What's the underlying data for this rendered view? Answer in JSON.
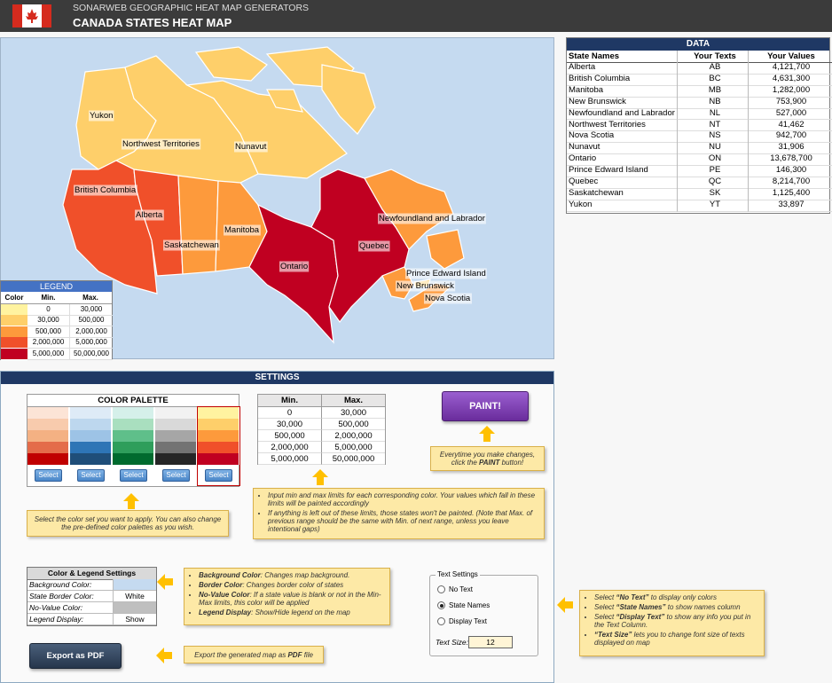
{
  "header": {
    "subtitle": "SONARWEB GEOGRAPHIC HEAT MAP GENERATORS",
    "title": "CANADA STATES HEAT MAP"
  },
  "map": {
    "background": "#c5daf0",
    "regions": [
      {
        "label": "Yukon",
        "color": "#fecf6a"
      },
      {
        "label": "Northwest Territories",
        "color": "#fecf6a"
      },
      {
        "label": "Nunavut",
        "color": "#fecf6a"
      },
      {
        "label": "British Columbia",
        "color": "#f0502a"
      },
      {
        "label": "Alberta",
        "color": "#f0502a"
      },
      {
        "label": "Saskatchewan",
        "color": "#fd9a3c"
      },
      {
        "label": "Manitoba",
        "color": "#fd9a3c"
      },
      {
        "label": "Ontario",
        "color": "#c00021"
      },
      {
        "label": "Quebec",
        "color": "#c00021"
      },
      {
        "label": "Newfoundland and Labrador",
        "color": "#fd9a3c"
      },
      {
        "label": "Prince Edward Island",
        "color": "#fecf6a"
      },
      {
        "label": "New Brunswick",
        "color": "#fd9a3c"
      },
      {
        "label": "Nova Scotia",
        "color": "#fd9a3c"
      }
    ]
  },
  "legend": {
    "title": "LEGEND",
    "columns": [
      "Color",
      "Min.",
      "Max."
    ],
    "rows": [
      {
        "color": "#fff3a0",
        "min": "0",
        "max": "30,000"
      },
      {
        "color": "#fecf6a",
        "min": "30,000",
        "max": "500,000"
      },
      {
        "color": "#fd9a3c",
        "min": "500,000",
        "max": "2,000,000"
      },
      {
        "color": "#f0502a",
        "min": "2,000,000",
        "max": "5,000,000"
      },
      {
        "color": "#c00021",
        "min": "5,000,000",
        "max": "50,000,000"
      }
    ]
  },
  "data_table": {
    "title": "DATA",
    "columns": [
      "State Names",
      "Your Texts",
      "Your Values"
    ],
    "rows": [
      [
        "Alberta",
        "AB",
        "4,121,700"
      ],
      [
        "British Columbia",
        "BC",
        "4,631,300"
      ],
      [
        "Manitoba",
        "MB",
        "1,282,000"
      ],
      [
        "New Brunswick",
        "NB",
        "753,900"
      ],
      [
        "Newfoundland and Labrador",
        "NL",
        "527,000"
      ],
      [
        "Northwest Territories",
        "NT",
        "41,462"
      ],
      [
        "Nova Scotia",
        "NS",
        "942,700"
      ],
      [
        "Nunavut",
        "NU",
        "31,906"
      ],
      [
        "Ontario",
        "ON",
        "13,678,700"
      ],
      [
        "Prince Edward Island",
        "PE",
        "146,300"
      ],
      [
        "Quebec",
        "QC",
        "8,214,700"
      ],
      [
        "Saskatchewan",
        "SK",
        "1,125,400"
      ],
      [
        "Yukon",
        "YT",
        "33,897"
      ]
    ]
  },
  "settings": {
    "title": "SETTINGS",
    "palette": {
      "title": "COLOR PALETTE",
      "columns": [
        {
          "colors": [
            "#fce4d6",
            "#f8cbad",
            "#f4b183",
            "#e46c4a",
            "#c00000"
          ],
          "button": "Select",
          "selected": false
        },
        {
          "colors": [
            "#deebf7",
            "#bdd7ee",
            "#9dc3e6",
            "#2e75b6",
            "#1f4e79"
          ],
          "button": "Select",
          "selected": false
        },
        {
          "colors": [
            "#d5f0ea",
            "#a9dfbf",
            "#5fbf8a",
            "#2e9e5b",
            "#006b2e"
          ],
          "button": "Select",
          "selected": false
        },
        {
          "colors": [
            "#f2f2f2",
            "#d9d9d9",
            "#a6a6a6",
            "#737373",
            "#262626"
          ],
          "button": "Select",
          "selected": false
        },
        {
          "colors": [
            "#fff3a0",
            "#fecf6a",
            "#fd9a3c",
            "#f0502a",
            "#c00021"
          ],
          "button": "Select",
          "selected": true
        }
      ],
      "note": "Select the color set you want to apply. You can also change the pre-defined color palettes as you wish."
    },
    "limits": {
      "columns": [
        "Min.",
        "Max."
      ],
      "rows": [
        [
          "0",
          "30,000"
        ],
        [
          "30,000",
          "500,000"
        ],
        [
          "500,000",
          "2,000,000"
        ],
        [
          "2,000,000",
          "5,000,000"
        ],
        [
          "5,000,000",
          "50,000,000"
        ]
      ],
      "note": [
        "Input min and max limits for each corresponding color. Your values which fall in these limits will be painted accordingly",
        "If anything is left out of these limits, those states won't be painted. (Note that Max. of previous range should be the same with Min. of next range, unless you leave intentional gaps)"
      ]
    },
    "paint": {
      "button": "PAINT!",
      "note": {
        "pre": "Everytime you make changes, click the ",
        "term": "PAINT",
        "post": " button!"
      }
    },
    "color_legend": {
      "title": "Color & Legend Settings",
      "rows": [
        {
          "label": "Background Color:",
          "color": "#c5daf0"
        },
        {
          "label": "State Border Color:",
          "value": "White"
        },
        {
          "label": "No-Value Color:",
          "color": "#bfbfbf"
        },
        {
          "label": "Legend Display:",
          "value": "Show"
        }
      ],
      "note": [
        {
          "term": "Background  Color",
          "text": ": Changes map background."
        },
        {
          "term": "Border Color",
          "text": ": Changes border color of states"
        },
        {
          "term": "No-Value Color",
          "text": ": If a state value is blank or not in the Min-Max limits, this color will be applied"
        },
        {
          "term": "Legend Display",
          "text": ": Show/Hide legend on the map"
        }
      ]
    },
    "export": {
      "button": "Export as PDF",
      "note": {
        "pre": "Export the generated map as ",
        "term": "PDF",
        "post": " file"
      }
    },
    "text_settings": {
      "title": "Text Settings",
      "options": [
        {
          "label": "No Text",
          "checked": false
        },
        {
          "label": "State Names",
          "checked": true
        },
        {
          "label": "Display Text",
          "checked": false
        }
      ],
      "size_label": "Text Size:",
      "size": "12"
    },
    "text_note": [
      {
        "pre": "Select ",
        "term": "“No Text”",
        "post": " to display only colors"
      },
      {
        "pre": "Select ",
        "term": "“State Names”",
        "post": " to show names column"
      },
      {
        "pre": "Select ",
        "term": "“Display Text”",
        "post": " to show any info you put in the Text Column."
      },
      {
        "term": "“Text Size”",
        "post": " lets you to change font size of texts displayed on map"
      }
    ]
  }
}
